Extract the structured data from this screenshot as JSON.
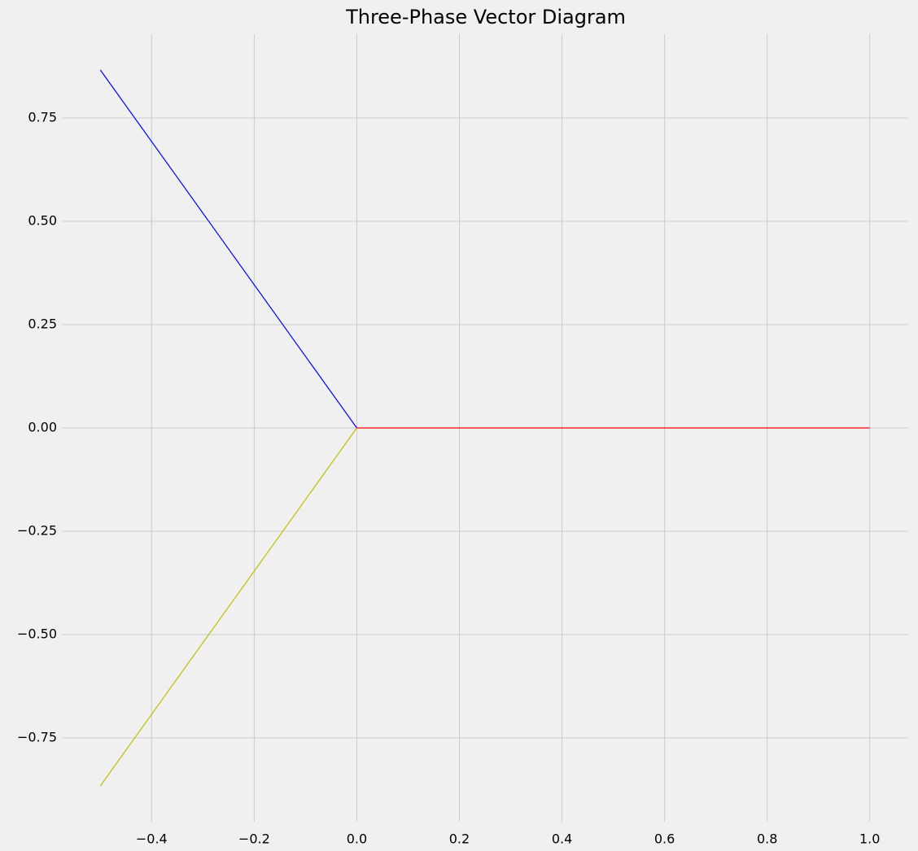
{
  "chart_data": {
    "type": "line",
    "title": "Three-Phase Vector Diagram",
    "series": [
      {
        "color": "#ff0000",
        "x": [
          0,
          1
        ],
        "values": [
          0,
          0
        ]
      },
      {
        "color": "#0000ff",
        "x": [
          0,
          -0.5
        ],
        "values": [
          0,
          0.866
        ]
      },
      {
        "color": "#bfbf00",
        "x": [
          0,
          -0.5
        ],
        "values": [
          0,
          -0.866
        ]
      }
    ],
    "xlim": [
      -0.575,
      1.075
    ],
    "ylim": [
      -0.9526,
      0.9526
    ],
    "xticks": [
      {
        "value": -0.4,
        "label": "−0.4"
      },
      {
        "value": -0.2,
        "label": "−0.2"
      },
      {
        "value": 0,
        "label": "0.0"
      },
      {
        "value": 0.2,
        "label": "0.2"
      },
      {
        "value": 0.4,
        "label": "0.4"
      },
      {
        "value": 0.6,
        "label": "0.6"
      },
      {
        "value": 0.8,
        "label": "0.8"
      },
      {
        "value": 1,
        "label": "1.0"
      }
    ],
    "yticks": [
      {
        "value": -0.75,
        "label": "−0.75"
      },
      {
        "value": -0.5,
        "label": "−0.50"
      },
      {
        "value": -0.25,
        "label": "−0.25"
      },
      {
        "value": 0,
        "label": "0.00"
      },
      0.25,
      {
        "value": 0.5,
        "label": "0.50"
      },
      0.75
    ],
    "grid": true
  }
}
